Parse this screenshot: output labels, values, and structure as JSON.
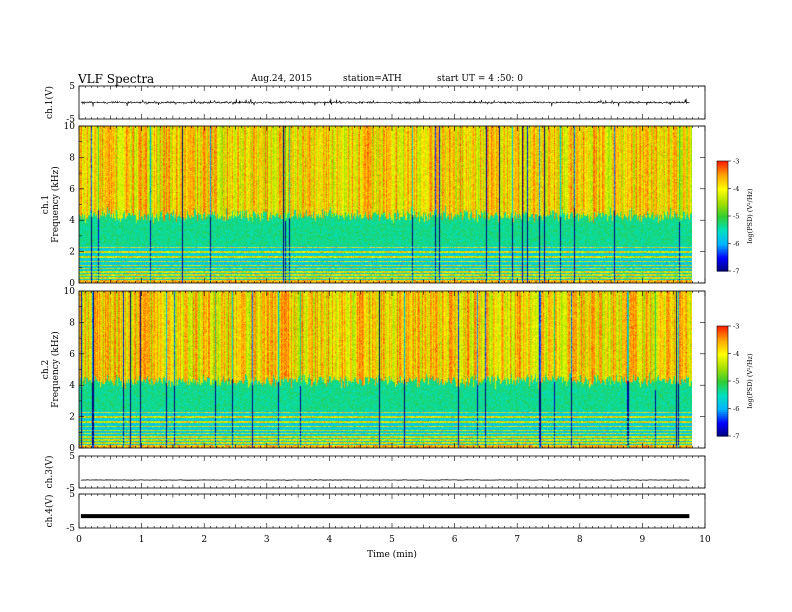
{
  "header": {
    "title": "VLF  Spectra",
    "date": "Aug.24, 2015",
    "station": "station=ATH",
    "start": "start  UT  =   4  :50: 0"
  },
  "chart_data": [
    {
      "type": "line",
      "panel": "ch.1 waveform",
      "ylabel": "ch.1(V)",
      "ylim": [
        -5,
        5
      ],
      "yticks": [
        "5",
        "-5"
      ],
      "xlim": [
        0,
        10
      ],
      "baseline": 0,
      "amplitude_range": [
        -1.5,
        1.5
      ]
    },
    {
      "type": "heatmap",
      "panel": "ch.1 spectrogram",
      "ylabel": "ch.1\nFrequency (kHz)",
      "ylabel_line1": "ch.1",
      "ylabel_line2": "Frequency (kHz)",
      "ylim": [
        0,
        10
      ],
      "yticks": [
        "0",
        "2",
        "4",
        "6",
        "8",
        "10"
      ],
      "xlim": [
        0,
        9.8
      ],
      "colorbar": {
        "label": "log(PSD) (V²/Hz)",
        "range": [
          -7,
          -3
        ],
        "ticks": [
          "-3",
          "-4",
          "-5",
          "-6",
          "-7"
        ]
      }
    },
    {
      "type": "heatmap",
      "panel": "ch.2 spectrogram",
      "ylabel_line1": "ch.2",
      "ylabel_line2": "Frequency (kHz)",
      "ylim": [
        0,
        10
      ],
      "yticks": [
        "0",
        "2",
        "4",
        "6",
        "8",
        "10"
      ],
      "xlim": [
        0,
        9.8
      ],
      "colorbar": {
        "label": "log(PSD) (V²/Hz)",
        "range": [
          -7,
          -3
        ],
        "ticks": [
          "-3",
          "-4",
          "-5",
          "-6",
          "-7"
        ]
      }
    },
    {
      "type": "line",
      "panel": "ch.3 waveform",
      "ylabel": "ch.3(V)",
      "ylim": [
        -5,
        5
      ],
      "yticks": [
        "5",
        "-5"
      ],
      "baseline": -2.5
    },
    {
      "type": "line",
      "panel": "ch.4 waveform",
      "ylabel": "ch.4(V)",
      "ylim": [
        -5,
        5
      ],
      "yticks": [
        "5",
        "-5"
      ],
      "baseline": -1.5
    }
  ],
  "xaxis": {
    "label": "Time  (min)",
    "ticks": [
      "0",
      "1",
      "2",
      "3",
      "4",
      "5",
      "6",
      "7",
      "8",
      "9",
      "10"
    ],
    "range": [
      0,
      10
    ]
  },
  "colors": {
    "spectrum_scale": [
      "#00007a",
      "#0000ff",
      "#00b4ff",
      "#00e0c0",
      "#32cd32",
      "#a8e000",
      "#ffff00",
      "#ffa500",
      "#ff2000",
      "#ffffff"
    ]
  }
}
